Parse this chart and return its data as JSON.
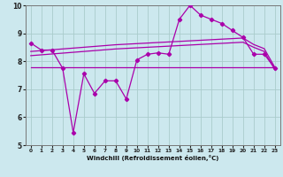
{
  "xlabel": "Windchill (Refroidissement éolien,°C)",
  "xlim": [
    -0.5,
    23.5
  ],
  "ylim": [
    5,
    10
  ],
  "yticks": [
    5,
    6,
    7,
    8,
    9,
    10
  ],
  "xticks": [
    0,
    1,
    2,
    3,
    4,
    5,
    6,
    7,
    8,
    9,
    10,
    11,
    12,
    13,
    14,
    15,
    16,
    17,
    18,
    19,
    20,
    21,
    22,
    23
  ],
  "bg_color": "#cce8ee",
  "line_color": "#aa00aa",
  "grid_color": "#aacccc",
  "main_x": [
    0,
    1,
    2,
    3,
    4,
    5,
    6,
    7,
    8,
    9,
    10,
    11,
    12,
    13,
    14,
    15,
    16,
    17,
    18,
    19,
    20,
    21,
    22,
    23
  ],
  "main_y": [
    8.65,
    8.4,
    8.4,
    7.75,
    5.45,
    7.55,
    6.85,
    7.3,
    7.3,
    6.65,
    8.05,
    8.25,
    8.3,
    8.25,
    9.5,
    10.0,
    9.65,
    9.5,
    9.35,
    9.1,
    8.85,
    8.25,
    8.25,
    7.75
  ],
  "upper1_x": [
    0,
    1,
    2,
    3,
    4,
    5,
    6,
    7,
    8,
    9,
    10,
    11,
    12,
    13,
    14,
    15,
    16,
    17,
    18,
    19,
    20,
    21,
    22,
    23
  ],
  "upper1_y": [
    8.35,
    8.38,
    8.41,
    8.44,
    8.47,
    8.5,
    8.53,
    8.56,
    8.59,
    8.61,
    8.63,
    8.65,
    8.67,
    8.69,
    8.71,
    8.73,
    8.75,
    8.77,
    8.79,
    8.81,
    8.83,
    8.6,
    8.45,
    7.78
  ],
  "upper2_x": [
    0,
    1,
    2,
    3,
    4,
    5,
    6,
    7,
    8,
    9,
    10,
    11,
    12,
    13,
    14,
    15,
    16,
    17,
    18,
    19,
    20,
    21,
    22,
    23
  ],
  "upper2_y": [
    8.2,
    8.23,
    8.26,
    8.29,
    8.32,
    8.35,
    8.38,
    8.41,
    8.44,
    8.46,
    8.48,
    8.5,
    8.52,
    8.54,
    8.56,
    8.58,
    8.6,
    8.62,
    8.64,
    8.66,
    8.68,
    8.5,
    8.35,
    7.7
  ],
  "lower_x": [
    0,
    1,
    2,
    3,
    4,
    5,
    6,
    7,
    8,
    9,
    10,
    11,
    12,
    13,
    14,
    15,
    16,
    17,
    18,
    19,
    20,
    21,
    22,
    23
  ],
  "lower_y": [
    7.78,
    7.78,
    7.78,
    7.78,
    7.78,
    7.78,
    7.78,
    7.78,
    7.78,
    7.78,
    7.78,
    7.78,
    7.78,
    7.78,
    7.78,
    7.78,
    7.78,
    7.78,
    7.78,
    7.78,
    7.78,
    7.78,
    7.78,
    7.78
  ]
}
